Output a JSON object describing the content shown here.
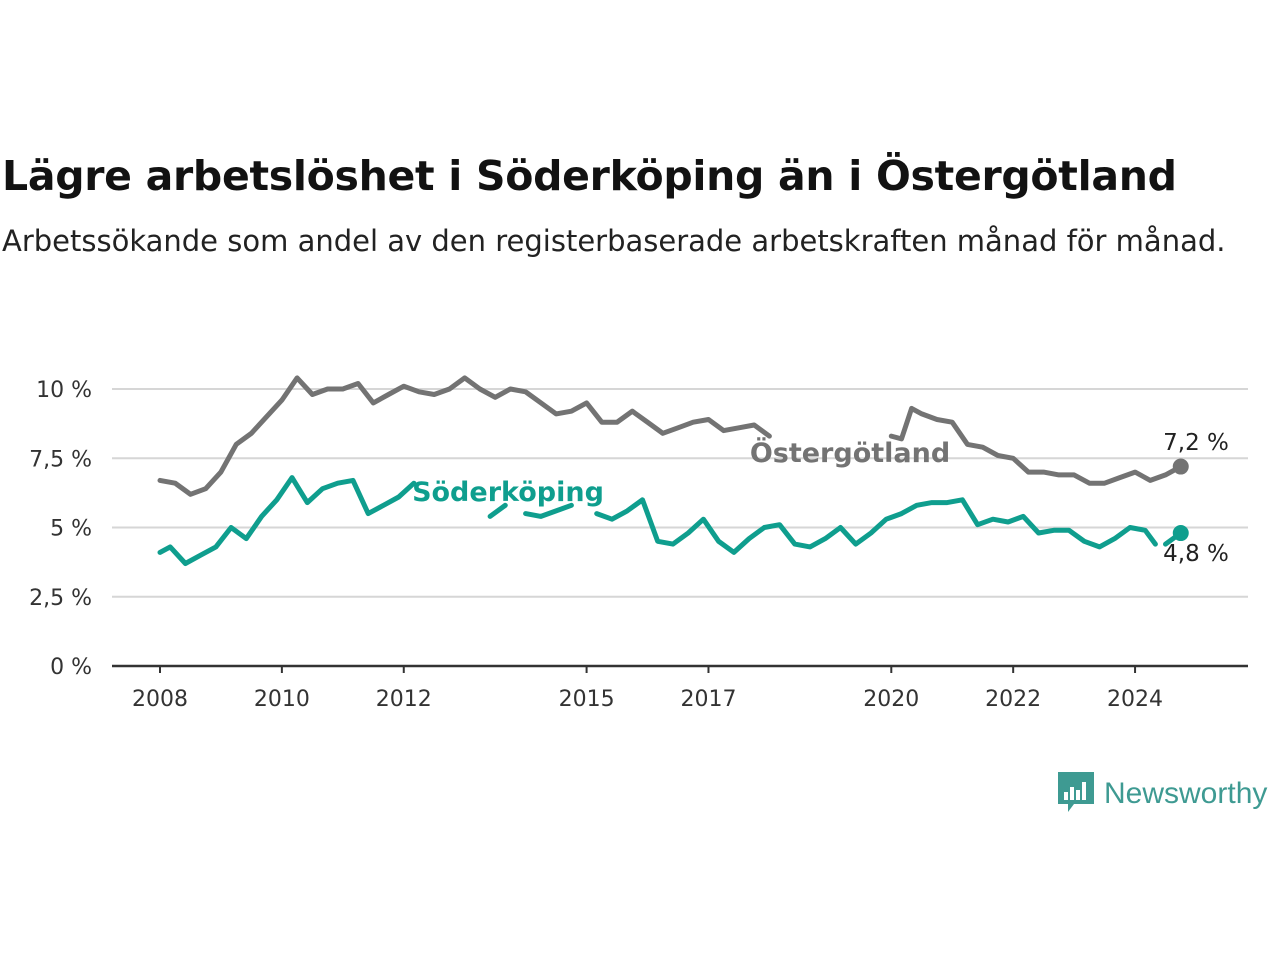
{
  "title": "Lägre arbetslöshet i Söderköping än i Östergötland",
  "subtitle": "Arbetssökande som andel av den registerbaserade arbetskraften månad för månad.",
  "logo": {
    "text": "Newsworthy",
    "icon": "bar-chart-bubble-icon",
    "color": "#3e9a92"
  },
  "chart_data": {
    "type": "line",
    "x_range": [
      "2008-01",
      "2025-01"
    ],
    "ylim": [
      0,
      10
    ],
    "grid": true,
    "y_ticks": [
      {
        "value": 0,
        "label": "0 %"
      },
      {
        "value": 2.5,
        "label": "2,5 %"
      },
      {
        "value": 5,
        "label": "5 %"
      },
      {
        "value": 7.5,
        "label": "7,5 %"
      },
      {
        "value": 10,
        "label": "10 %"
      }
    ],
    "x_ticks": [
      {
        "value": "2008-01",
        "label": "2008"
      },
      {
        "value": "2010-01",
        "label": "2010"
      },
      {
        "value": "2012-01",
        "label": "2012"
      },
      {
        "value": "2015-01",
        "label": "2015"
      },
      {
        "value": "2017-01",
        "label": "2017"
      },
      {
        "value": "2020-01",
        "label": "2020"
      },
      {
        "value": "2022-01",
        "label": "2022"
      },
      {
        "value": "2024-01",
        "label": "2024"
      }
    ],
    "series": [
      {
        "name": "Östergötland",
        "color": "#737373",
        "end_label": "7,2 %",
        "points": [
          [
            "2008-01",
            6.7
          ],
          [
            "2008-04",
            6.6
          ],
          [
            "2008-07",
            6.2
          ],
          [
            "2008-10",
            6.4
          ],
          [
            "2009-01",
            7.0
          ],
          [
            "2009-04",
            8.0
          ],
          [
            "2009-07",
            8.4
          ],
          [
            "2009-10",
            9.0
          ],
          [
            "2010-01",
            9.6
          ],
          [
            "2010-04",
            10.4
          ],
          [
            "2010-07",
            9.8
          ],
          [
            "2010-10",
            10.0
          ],
          [
            "2011-01",
            10.0
          ],
          [
            "2011-04",
            10.2
          ],
          [
            "2011-07",
            9.5
          ],
          [
            "2011-10",
            9.8
          ],
          [
            "2012-01",
            10.1
          ],
          [
            "2012-04",
            9.9
          ],
          [
            "2012-07",
            9.8
          ],
          [
            "2012-10",
            10.0
          ],
          [
            "2013-01",
            10.4
          ],
          [
            "2013-04",
            10.0
          ],
          [
            "2013-07",
            9.7
          ],
          [
            "2013-10",
            10.0
          ],
          [
            "2014-01",
            9.9
          ],
          [
            "2014-04",
            9.5
          ],
          [
            "2014-07",
            9.1
          ],
          [
            "2014-10",
            9.2
          ],
          [
            "2015-01",
            9.5
          ],
          [
            "2015-04",
            8.8
          ],
          [
            "2015-07",
            8.8
          ],
          [
            "2015-10",
            9.2
          ],
          [
            "2016-01",
            8.8
          ],
          [
            "2016-04",
            8.4
          ],
          [
            "2016-07",
            8.6
          ],
          [
            "2016-10",
            8.8
          ],
          [
            "2017-01",
            8.9
          ],
          [
            "2017-04",
            8.5
          ],
          [
            "2017-07",
            8.6
          ],
          [
            "2017-10",
            8.7
          ],
          [
            "2018-01",
            8.3
          ],
          null,
          [
            "2020-01",
            8.3
          ],
          [
            "2020-03",
            8.2
          ],
          [
            "2020-05",
            9.3
          ],
          [
            "2020-07",
            9.1
          ],
          [
            "2020-10",
            8.9
          ],
          [
            "2021-01",
            8.8
          ],
          [
            "2021-04",
            8.0
          ],
          [
            "2021-07",
            7.9
          ],
          [
            "2021-10",
            7.6
          ],
          [
            "2022-01",
            7.5
          ],
          [
            "2022-04",
            7.0
          ],
          [
            "2022-07",
            7.0
          ],
          [
            "2022-10",
            6.9
          ],
          [
            "2023-01",
            6.9
          ],
          [
            "2023-04",
            6.6
          ],
          [
            "2023-07",
            6.6
          ],
          [
            "2023-10",
            6.8
          ],
          [
            "2024-01",
            7.0
          ],
          [
            "2024-04",
            6.7
          ],
          [
            "2024-07",
            6.9
          ],
          [
            "2024-10",
            7.2
          ]
        ]
      },
      {
        "name": "Söderköping",
        "color": "#0f9e8e",
        "end_label": "4,8 %",
        "points": [
          [
            "2008-01",
            4.1
          ],
          [
            "2008-03",
            4.3
          ],
          [
            "2008-06",
            3.7
          ],
          [
            "2008-09",
            4.0
          ],
          [
            "2008-12",
            4.3
          ],
          [
            "2009-03",
            5.0
          ],
          [
            "2009-06",
            4.6
          ],
          [
            "2009-09",
            5.4
          ],
          [
            "2009-12",
            6.0
          ],
          [
            "2010-03",
            6.8
          ],
          [
            "2010-06",
            5.9
          ],
          [
            "2010-09",
            6.4
          ],
          [
            "2010-12",
            6.6
          ],
          [
            "2011-03",
            6.7
          ],
          [
            "2011-06",
            5.5
          ],
          [
            "2011-09",
            5.8
          ],
          [
            "2011-12",
            6.1
          ],
          [
            "2012-03",
            6.6
          ],
          null,
          [
            "2013-06",
            5.4
          ],
          [
            "2013-09",
            5.8
          ],
          null,
          [
            "2014-01",
            5.5
          ],
          [
            "2014-04",
            5.4
          ],
          [
            "2014-07",
            5.6
          ],
          [
            "2014-10",
            5.8
          ],
          null,
          [
            "2015-03",
            5.5
          ],
          [
            "2015-06",
            5.3
          ],
          [
            "2015-09",
            5.6
          ],
          [
            "2015-12",
            6.0
          ],
          [
            "2016-03",
            4.5
          ],
          [
            "2016-06",
            4.4
          ],
          [
            "2016-09",
            4.8
          ],
          [
            "2016-12",
            5.3
          ],
          [
            "2017-03",
            4.5
          ],
          [
            "2017-06",
            4.1
          ],
          [
            "2017-09",
            4.6
          ],
          [
            "2017-12",
            5.0
          ],
          [
            "2018-03",
            5.1
          ],
          [
            "2018-06",
            4.4
          ],
          [
            "2018-09",
            4.3
          ],
          [
            "2018-12",
            4.6
          ],
          [
            "2019-03",
            5.0
          ],
          [
            "2019-06",
            4.4
          ],
          [
            "2019-09",
            4.8
          ],
          [
            "2019-12",
            5.3
          ],
          [
            "2020-03",
            5.5
          ],
          [
            "2020-06",
            5.8
          ],
          [
            "2020-09",
            5.9
          ],
          [
            "2020-12",
            5.9
          ],
          [
            "2021-03",
            6.0
          ],
          [
            "2021-06",
            5.1
          ],
          [
            "2021-09",
            5.3
          ],
          [
            "2021-12",
            5.2
          ],
          [
            "2022-03",
            5.4
          ],
          [
            "2022-06",
            4.8
          ],
          [
            "2022-09",
            4.9
          ],
          [
            "2022-12",
            4.9
          ],
          [
            "2023-03",
            4.5
          ],
          [
            "2023-06",
            4.3
          ],
          [
            "2023-09",
            4.6
          ],
          [
            "2023-12",
            5.0
          ],
          [
            "2024-03",
            4.9
          ],
          [
            "2024-05",
            4.4
          ],
          null,
          [
            "2024-07",
            4.4
          ],
          [
            "2024-10",
            4.8
          ]
        ]
      }
    ]
  }
}
